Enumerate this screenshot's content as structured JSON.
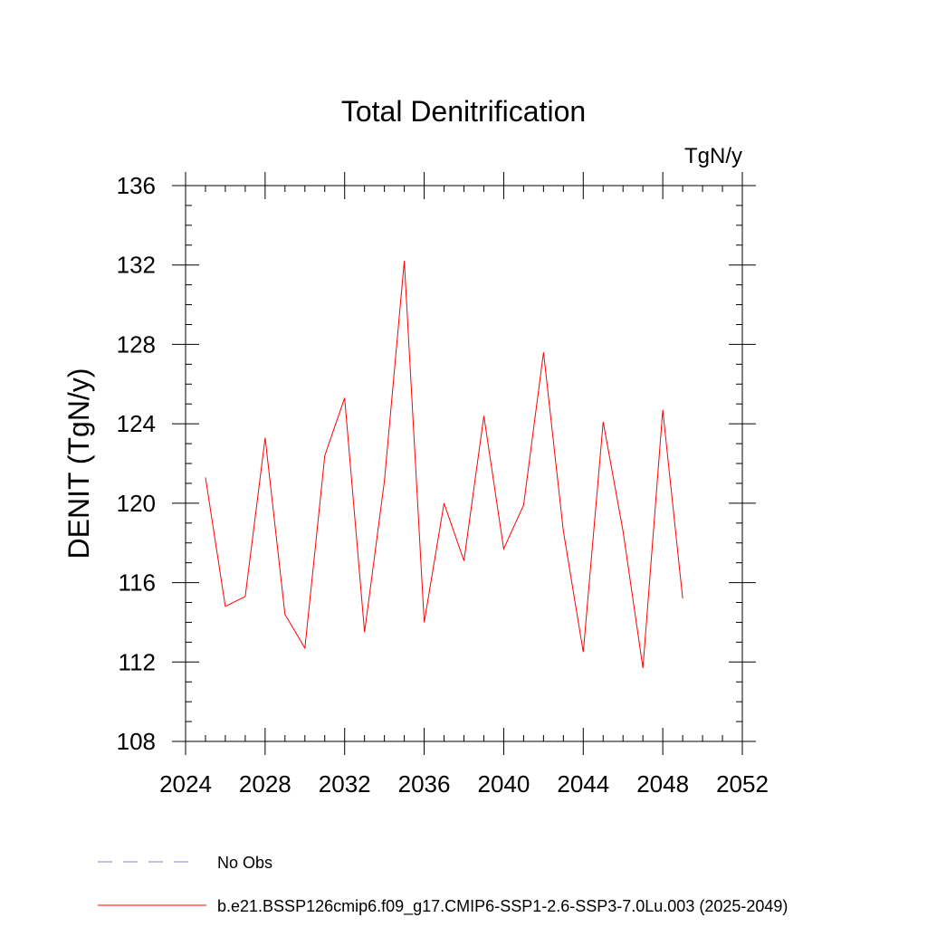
{
  "chart_data": {
    "type": "line",
    "title": "Total Denitrification",
    "units_label": "TgN/y",
    "ylabel": "DENIT  (TgN/y)",
    "xlabel": "",
    "xlim": [
      2024,
      2052
    ],
    "ylim": [
      108,
      136
    ],
    "x_ticks": [
      2024,
      2028,
      2032,
      2036,
      2040,
      2044,
      2048,
      2052
    ],
    "y_ticks": [
      108,
      112,
      116,
      120,
      124,
      128,
      132,
      136
    ],
    "x_minor_step": 1,
    "y_minor_step": 1,
    "grid": false,
    "legend_position": "bottom-left",
    "series": [
      {
        "name": "b.e21.BSSP126cmip6.f09_g17.CMIP6-SSP1-2.6-SSP3-7.0Lu.003 (2025-2049)",
        "color": "#ff0000",
        "style": "solid",
        "x": [
          2025,
          2026,
          2027,
          2028,
          2029,
          2030,
          2031,
          2032,
          2033,
          2034,
          2035,
          2036,
          2037,
          2038,
          2039,
          2040,
          2041,
          2042,
          2043,
          2044,
          2045,
          2046,
          2047,
          2048,
          2049
        ],
        "values": [
          121.3,
          114.8,
          115.3,
          123.3,
          114.4,
          112.7,
          122.4,
          125.3,
          113.5,
          121.1,
          132.2,
          114.0,
          120.0,
          117.1,
          124.4,
          117.7,
          119.9,
          127.6,
          118.6,
          112.5,
          124.1,
          118.6,
          111.7,
          124.7,
          115.2
        ]
      }
    ],
    "legend": [
      {
        "label": "No Obs",
        "color": "#7f7fcf",
        "style": "dashed"
      },
      {
        "label": "b.e21.BSSP126cmip6.f09_g17.CMIP6-SSP1-2.6-SSP3-7.0Lu.003 (2025-2049)",
        "color": "#ff0000",
        "style": "solid"
      }
    ]
  }
}
